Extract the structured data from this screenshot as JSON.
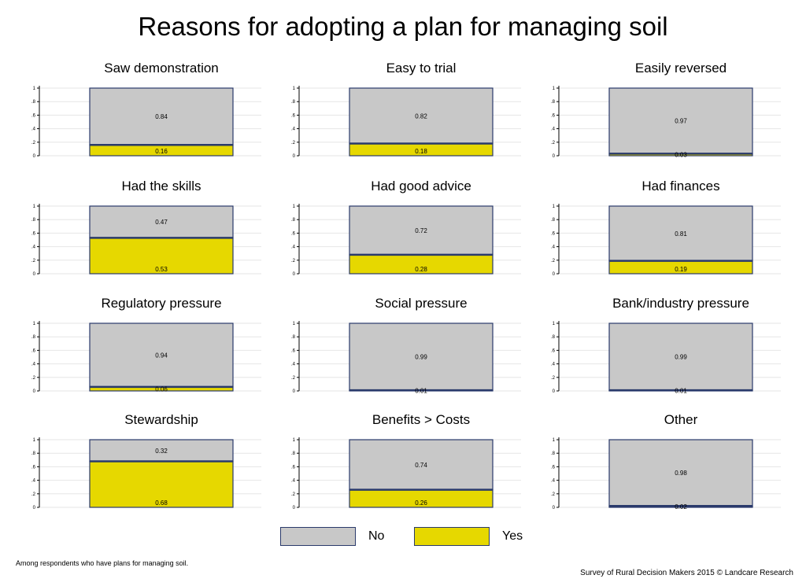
{
  "title": "Reasons for adopting a plan for managing soil",
  "legend": {
    "no_label": "No",
    "yes_label": "Yes"
  },
  "footnote_left": "Among respondents who have plans for managing soil.",
  "footnote_right": "Survey of Rural Decision Makers 2015 © Landcare Research",
  "colors": {
    "no": "#c8c8c8",
    "yes": "#e6d800",
    "border": "#2a3a6b",
    "grid": "#e6e6e6"
  },
  "chart_data": {
    "type": "bar",
    "stacked": true,
    "ylim": [
      0,
      1
    ],
    "y_ticks": [
      "0",
      ".2",
      ".4",
      ".6",
      ".8",
      "1"
    ],
    "grid": true,
    "legend_position": "bottom",
    "panels": [
      {
        "title": "Saw demonstration",
        "no": 0.84,
        "yes": 0.16,
        "no_label": "0.84",
        "yes_label": "0.16"
      },
      {
        "title": "Easy to trial",
        "no": 0.82,
        "yes": 0.18,
        "no_label": "0.82",
        "yes_label": "0.18"
      },
      {
        "title": "Easily reversed",
        "no": 0.97,
        "yes": 0.03,
        "no_label": "0.97",
        "yes_label": "0.03"
      },
      {
        "title": "Had the skills",
        "no": 0.47,
        "yes": 0.53,
        "no_label": "0.47",
        "yes_label": "0.53"
      },
      {
        "title": "Had good advice",
        "no": 0.72,
        "yes": 0.28,
        "no_label": "0.72",
        "yes_label": "0.28"
      },
      {
        "title": "Had finances",
        "no": 0.81,
        "yes": 0.19,
        "no_label": "0.81",
        "yes_label": "0.19"
      },
      {
        "title": "Regulatory pressure",
        "no": 0.94,
        "yes": 0.06,
        "no_label": "0.94",
        "yes_label": "0.06"
      },
      {
        "title": "Social pressure",
        "no": 0.99,
        "yes": 0.01,
        "no_label": "0.99",
        "yes_label": "0.01"
      },
      {
        "title": "Bank/industry pressure",
        "no": 0.99,
        "yes": 0.01,
        "no_label": "0.99",
        "yes_label": "0.01"
      },
      {
        "title": "Stewardship",
        "no": 0.32,
        "yes": 0.68,
        "no_label": "0.32",
        "yes_label": "0.68"
      },
      {
        "title": "Benefits > Costs",
        "no": 0.74,
        "yes": 0.26,
        "no_label": "0.74",
        "yes_label": "0.26"
      },
      {
        "title": "Other",
        "no": 0.98,
        "yes": 0.02,
        "no_label": "0.98",
        "yes_label": "0.02"
      }
    ]
  }
}
